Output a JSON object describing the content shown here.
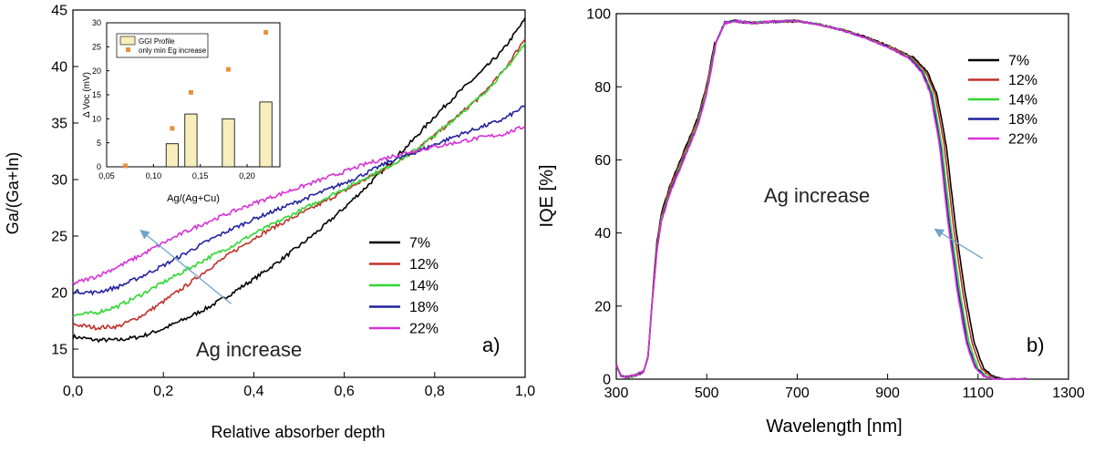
{
  "chart_data": [
    {
      "type": "line",
      "panel_label": "a)",
      "xlabel": "Relative absorber depth",
      "ylabel": "Ga/(Ga+In)",
      "xlim": [
        0,
        1
      ],
      "ylim": [
        12.5,
        45
      ],
      "xticks": [
        0.0,
        0.2,
        0.4,
        0.6,
        0.8,
        1.0
      ],
      "xtick_labels": [
        "0,0",
        "0,2",
        "0,4",
        "0,6",
        "0,8",
        "1,0"
      ],
      "yticks": [
        15,
        20,
        25,
        30,
        35,
        40,
        45
      ],
      "ytick_labels": [
        "15",
        "20",
        "25",
        "30",
        "35",
        "40",
        "45"
      ],
      "annotation": {
        "text": "Ag increase",
        "arrow_from": [
          0.35,
          19
        ],
        "arrow_to": [
          0.15,
          25.5
        ]
      },
      "legend": [
        "7%",
        "12%",
        "14%",
        "18%",
        "22%"
      ],
      "series": [
        {
          "name": "7%",
          "color": "#000000",
          "x": [
            0,
            0.05,
            0.1,
            0.15,
            0.2,
            0.25,
            0.3,
            0.35,
            0.4,
            0.45,
            0.5,
            0.55,
            0.6,
            0.65,
            0.7,
            0.75,
            0.8,
            0.85,
            0.9,
            0.95,
            1.0
          ],
          "y": [
            16.1,
            15.8,
            15.8,
            16.1,
            16.8,
            17.7,
            18.7,
            19.9,
            21.2,
            22.6,
            24.1,
            25.7,
            27.5,
            29.4,
            31.4,
            33.4,
            35.6,
            37.6,
            39.4,
            41.4,
            44.2
          ]
        },
        {
          "name": "12%",
          "color": "#c0302a",
          "x": [
            0,
            0.05,
            0.1,
            0.15,
            0.2,
            0.25,
            0.3,
            0.35,
            0.4,
            0.45,
            0.5,
            0.55,
            0.6,
            0.65,
            0.7,
            0.75,
            0.8,
            0.85,
            0.9,
            0.95,
            1.0
          ],
          "y": [
            17.2,
            16.9,
            17.0,
            17.9,
            19.2,
            20.6,
            22.1,
            23.5,
            24.8,
            25.9,
            26.9,
            27.9,
            29.0,
            30.1,
            31.2,
            32.4,
            33.9,
            35.6,
            37.3,
            39.5,
            42.5
          ]
        },
        {
          "name": "14%",
          "color": "#33d633",
          "x": [
            0,
            0.05,
            0.1,
            0.15,
            0.2,
            0.25,
            0.3,
            0.35,
            0.4,
            0.45,
            0.5,
            0.55,
            0.6,
            0.65,
            0.7,
            0.75,
            0.8,
            0.85,
            0.9,
            0.95,
            1.0
          ],
          "y": [
            18.0,
            18.2,
            18.8,
            19.8,
            20.9,
            22.0,
            23.1,
            24.1,
            25.2,
            26.2,
            27.2,
            28.2,
            29.2,
            30.2,
            31.2,
            32.4,
            33.9,
            35.6,
            37.3,
            39.4,
            42.0
          ]
        },
        {
          "name": "18%",
          "color": "#22229e",
          "x": [
            0,
            0.05,
            0.1,
            0.15,
            0.2,
            0.25,
            0.3,
            0.35,
            0.4,
            0.45,
            0.5,
            0.55,
            0.6,
            0.65,
            0.7,
            0.75,
            0.8,
            0.85,
            0.9,
            0.95,
            1.0
          ],
          "y": [
            20.1,
            20.0,
            20.5,
            21.4,
            22.4,
            23.5,
            24.6,
            25.6,
            26.5,
            27.3,
            28.1,
            28.9,
            29.7,
            30.6,
            31.6,
            32.3,
            33.1,
            33.9,
            34.6,
            35.3,
            36.5
          ]
        },
        {
          "name": "22%",
          "color": "#d633d6",
          "x": [
            0,
            0.05,
            0.1,
            0.15,
            0.2,
            0.25,
            0.3,
            0.35,
            0.4,
            0.45,
            0.5,
            0.55,
            0.6,
            0.65,
            0.7,
            0.75,
            0.8,
            0.85,
            0.9,
            0.95,
            1.0
          ],
          "y": [
            20.8,
            21.4,
            22.3,
            23.3,
            24.4,
            25.4,
            26.3,
            27.1,
            27.9,
            28.6,
            29.3,
            30.0,
            30.7,
            31.4,
            32.0,
            32.5,
            32.9,
            33.3,
            33.7,
            34.0,
            34.7
          ]
        }
      ]
    },
    {
      "type": "scatter-bar",
      "xlabel": "Ag/(Ag+Cu)",
      "ylabel": "Δ Voc (mV)",
      "xlim": [
        0.05,
        0.235
      ],
      "ylim": [
        0,
        30
      ],
      "xticks": [
        0.05,
        0.1,
        0.15,
        0.2
      ],
      "xtick_labels": [
        "0,05",
        "0,10",
        "0,15",
        "0,20"
      ],
      "yticks": [
        0,
        5,
        10,
        15,
        20,
        25,
        30
      ],
      "ytick_labels": [
        "0",
        "5",
        "10",
        "15",
        "20",
        "25",
        "30"
      ],
      "bars": {
        "name": "GGI Profile",
        "color": "#f7eebb",
        "x": [
          0.12,
          0.14,
          0.18,
          0.22
        ],
        "values": [
          4.8,
          11.0,
          10.0,
          13.5
        ]
      },
      "points": {
        "name": "only min Eg increase",
        "color": "#e8913a",
        "x": [
          0.07,
          0.12,
          0.14,
          0.18,
          0.22
        ],
        "values": [
          0.2,
          8.0,
          15.5,
          20.3,
          28.0
        ]
      }
    },
    {
      "type": "line",
      "panel_label": "b)",
      "xlabel": "Wavelength [nm]",
      "ylabel": "IQE [%]",
      "xlim": [
        300,
        1300
      ],
      "ylim": [
        0,
        100
      ],
      "xticks": [
        300,
        500,
        700,
        900,
        1100,
        1300
      ],
      "xtick_labels": [
        "300",
        "500",
        "700",
        "900",
        "1100",
        "1300"
      ],
      "yticks": [
        0,
        20,
        40,
        60,
        80,
        100
      ],
      "ytick_labels": [
        "0",
        "20",
        "40",
        "60",
        "80",
        "100"
      ],
      "annotation": {
        "text": "Ag increase",
        "arrow_from": [
          1110,
          33
        ],
        "arrow_to": [
          1005,
          41
        ]
      },
      "legend": [
        "7%",
        "12%",
        "14%",
        "18%",
        "22%"
      ],
      "series": [
        {
          "name": "7%",
          "color": "#000000",
          "shift": 18
        },
        {
          "name": "12%",
          "color": "#c0302a",
          "shift": 10
        },
        {
          "name": "14%",
          "color": "#33d633",
          "shift": 0
        },
        {
          "name": "18%",
          "color": "#22229e",
          "shift": -6
        },
        {
          "name": "22%",
          "color": "#d633d6",
          "shift": -10
        }
      ],
      "base_curve": {
        "x": [
          300,
          310,
          320,
          340,
          360,
          370,
          380,
          390,
          400,
          420,
          440,
          460,
          480,
          500,
          520,
          540,
          560,
          600,
          650,
          700,
          750,
          800,
          850,
          900,
          950,
          980,
          1000,
          1020,
          1040,
          1060,
          1080,
          1100,
          1120,
          1140,
          1160,
          1180
        ],
        "y": [
          4,
          1,
          0.5,
          1,
          2,
          6,
          22,
          36,
          44,
          52,
          58,
          64,
          70,
          79,
          92,
          97.5,
          98,
          97.5,
          97.8,
          98,
          97,
          95.5,
          93.5,
          91,
          88,
          84,
          78,
          64,
          42,
          24,
          10,
          3,
          0.8,
          0,
          0,
          0
        ]
      }
    }
  ]
}
